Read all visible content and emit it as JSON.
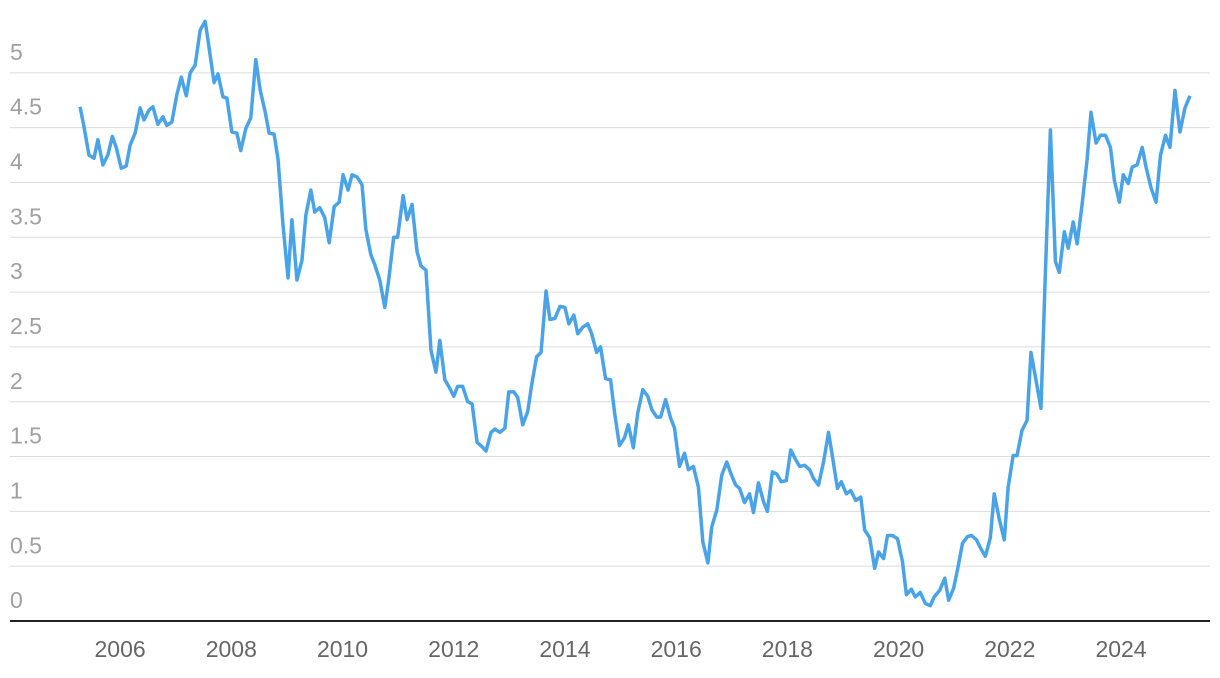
{
  "chart_data": {
    "type": "line",
    "x": [
      2005.28,
      2005.35,
      2005.44,
      2005.53,
      2005.6,
      2005.69,
      2005.78,
      2005.86,
      2005.93,
      2006.02,
      2006.11,
      2006.18,
      2006.27,
      2006.36,
      2006.43,
      2006.52,
      2006.59,
      2006.68,
      2006.77,
      2006.84,
      2006.93,
      2007.02,
      2007.1,
      2007.19,
      2007.26,
      2007.35,
      2007.44,
      2007.53,
      2007.6,
      2007.69,
      2007.76,
      2007.85,
      2007.92,
      2008.01,
      2008.1,
      2008.17,
      2008.26,
      2008.35,
      2008.44,
      2008.52,
      2008.61,
      2008.68,
      2008.77,
      2008.84,
      2008.93,
      2009.02,
      2009.09,
      2009.18,
      2009.27,
      2009.34,
      2009.43,
      2009.5,
      2009.59,
      2009.68,
      2009.76,
      2009.85,
      2009.94,
      2010.01,
      2010.1,
      2010.17,
      2010.26,
      2010.35,
      2010.42,
      2010.51,
      2010.58,
      2010.67,
      2010.76,
      2010.83,
      2010.92,
      2010.99,
      2011.09,
      2011.16,
      2011.25,
      2011.34,
      2011.41,
      2011.5,
      2011.59,
      2011.68,
      2011.75,
      2011.84,
      2011.91,
      2012.0,
      2012.07,
      2012.16,
      2012.25,
      2012.33,
      2012.42,
      2012.51,
      2012.58,
      2012.67,
      2012.74,
      2012.83,
      2012.92,
      2012.99,
      2013.08,
      2013.15,
      2013.24,
      2013.33,
      2013.4,
      2013.49,
      2013.57,
      2013.66,
      2013.73,
      2013.82,
      2013.91,
      2014.0,
      2014.07,
      2014.16,
      2014.23,
      2014.32,
      2014.41,
      2014.48,
      2014.57,
      2014.64,
      2014.73,
      2014.82,
      2014.89,
      2014.98,
      2015.07,
      2015.14,
      2015.23,
      2015.31,
      2015.4,
      2015.49,
      2015.56,
      2015.65,
      2015.72,
      2015.81,
      2015.9,
      2015.97,
      2016.06,
      2016.15,
      2016.22,
      2016.31,
      2016.4,
      2016.48,
      2016.57,
      2016.64,
      2016.73,
      2016.82,
      2016.91,
      2016.98,
      2017.07,
      2017.14,
      2017.23,
      2017.32,
      2017.39,
      2017.48,
      2017.57,
      2017.64,
      2017.73,
      2017.81,
      2017.89,
      2017.98,
      2018.06,
      2018.15,
      2018.22,
      2018.31,
      2018.4,
      2018.47,
      2018.56,
      2018.65,
      2018.74,
      2018.81,
      2018.9,
      2018.97,
      2019.06,
      2019.14,
      2019.23,
      2019.32,
      2019.39,
      2019.48,
      2019.57,
      2019.64,
      2019.73,
      2019.8,
      2019.89,
      2019.98,
      2020.07,
      2020.14,
      2020.23,
      2020.3,
      2020.39,
      2020.48,
      2020.57,
      2020.64,
      2020.74,
      2020.83,
      2020.9,
      2020.99,
      2021.06,
      2021.15,
      2021.24,
      2021.31,
      2021.4,
      2021.49,
      2021.56,
      2021.65,
      2021.72,
      2021.81,
      2021.9,
      2021.97,
      2022.06,
      2022.13,
      2022.22,
      2022.31,
      2022.38,
      2022.47,
      2022.56,
      2022.64,
      2022.73,
      2022.82,
      2022.89,
      2022.98,
      2023.05,
      2023.14,
      2023.21,
      2023.3,
      2023.39,
      2023.46,
      2023.55,
      2023.63,
      2023.72,
      2023.81,
      2023.88,
      2023.97,
      2024.04,
      2024.13,
      2024.2,
      2024.29,
      2024.38,
      2024.45,
      2024.54,
      2024.63,
      2024.71,
      2024.8,
      2024.88,
      2024.97,
      2025.06,
      2025.15,
      2025.24
    ],
    "series": [
      {
        "color": "#4aa3e6",
        "values": [
          4.69,
          4.51,
          4.25,
          4.22,
          4.39,
          4.16,
          4.25,
          4.42,
          4.32,
          4.13,
          4.15,
          4.34,
          4.45,
          4.68,
          4.57,
          4.66,
          4.69,
          4.53,
          4.6,
          4.52,
          4.55,
          4.8,
          4.96,
          4.79,
          5.0,
          5.07,
          5.39,
          5.47,
          5.23,
          4.91,
          4.99,
          4.78,
          4.77,
          4.46,
          4.45,
          4.29,
          4.49,
          4.59,
          5.12,
          4.84,
          4.64,
          4.45,
          4.44,
          4.21,
          3.61,
          3.13,
          3.66,
          3.11,
          3.29,
          3.7,
          3.93,
          3.73,
          3.77,
          3.68,
          3.45,
          3.78,
          3.82,
          4.07,
          3.93,
          4.07,
          4.05,
          3.98,
          3.57,
          3.34,
          3.25,
          3.11,
          2.86,
          3.11,
          3.5,
          3.5,
          3.88,
          3.66,
          3.8,
          3.37,
          3.24,
          3.2,
          2.47,
          2.27,
          2.56,
          2.2,
          2.14,
          2.05,
          2.14,
          2.14,
          2.0,
          1.98,
          1.63,
          1.59,
          1.55,
          1.72,
          1.75,
          1.72,
          1.76,
          2.09,
          2.09,
          2.04,
          1.79,
          1.91,
          2.15,
          2.41,
          2.45,
          3.01,
          2.75,
          2.76,
          2.87,
          2.86,
          2.71,
          2.79,
          2.62,
          2.68,
          2.71,
          2.62,
          2.45,
          2.5,
          2.21,
          2.2,
          1.91,
          1.6,
          1.67,
          1.79,
          1.58,
          1.9,
          2.11,
          2.05,
          1.93,
          1.86,
          1.86,
          2.02,
          1.85,
          1.76,
          1.41,
          1.53,
          1.38,
          1.41,
          1.22,
          0.72,
          0.53,
          0.86,
          1.01,
          1.33,
          1.45,
          1.35,
          1.24,
          1.21,
          1.08,
          1.16,
          0.99,
          1.26,
          1.09,
          1.0,
          1.36,
          1.34,
          1.27,
          1.28,
          1.56,
          1.47,
          1.41,
          1.42,
          1.38,
          1.3,
          1.24,
          1.45,
          1.72,
          1.5,
          1.21,
          1.27,
          1.16,
          1.19,
          1.1,
          1.13,
          0.83,
          0.76,
          0.48,
          0.63,
          0.57,
          0.78,
          0.78,
          0.75,
          0.54,
          0.24,
          0.29,
          0.22,
          0.26,
          0.16,
          0.14,
          0.22,
          0.28,
          0.39,
          0.19,
          0.3,
          0.47,
          0.71,
          0.77,
          0.78,
          0.74,
          0.65,
          0.59,
          0.76,
          1.16,
          0.93,
          0.74,
          1.22,
          1.51,
          1.51,
          1.74,
          1.83,
          2.45,
          2.2,
          1.94,
          3.18,
          4.48,
          3.28,
          3.18,
          3.55,
          3.4,
          3.64,
          3.44,
          3.8,
          4.21,
          4.64,
          4.36,
          4.43,
          4.43,
          4.32,
          4.02,
          3.82,
          4.07,
          3.99,
          4.14,
          4.16,
          4.32,
          4.14,
          3.95,
          3.82,
          4.25,
          4.43,
          4.32,
          4.84,
          4.46,
          4.68,
          4.79
        ]
      }
    ],
    "xlim": [
      2004.02,
      2025.6
    ],
    "xticks": [
      2006,
      2008,
      2010,
      2012,
      2014,
      2016,
      2018,
      2020,
      2022,
      2024
    ],
    "ylim": [
      0,
      5.5
    ],
    "yticks": [
      0,
      0.5,
      1,
      1.5,
      2,
      2.5,
      3,
      3.5,
      4,
      4.5,
      5
    ],
    "grid": true
  }
}
